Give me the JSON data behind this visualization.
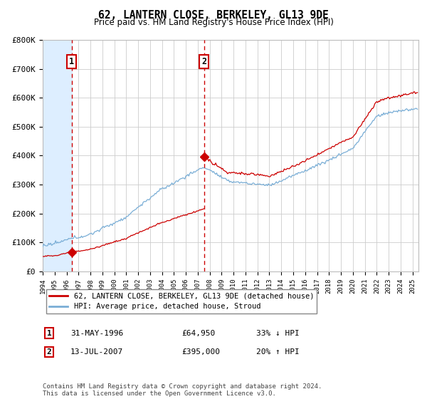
{
  "title": "62, LANTERN CLOSE, BERKELEY, GL13 9DE",
  "subtitle": "Price paid vs. HM Land Registry's House Price Index (HPI)",
  "hpi_color": "#7aaed6",
  "price_color": "#cc0000",
  "annotation_color": "#cc0000",
  "background_color": "#ffffff",
  "grid_color": "#cccccc",
  "shade_color": "#ddeeff",
  "ylim": [
    0,
    800000
  ],
  "yticks": [
    0,
    100000,
    200000,
    300000,
    400000,
    500000,
    600000,
    700000,
    800000
  ],
  "ytick_labels": [
    "£0",
    "£100K",
    "£200K",
    "£300K",
    "£400K",
    "£500K",
    "£600K",
    "£700K",
    "£800K"
  ],
  "purchase1": {
    "date": "1996-05-31",
    "price": 64950,
    "label": "1",
    "x": 1996.42
  },
  "purchase2": {
    "date": "2007-07-13",
    "price": 395000,
    "label": "2",
    "x": 2007.54
  },
  "legend_line1": "62, LANTERN CLOSE, BERKELEY, GL13 9DE (detached house)",
  "legend_line2": "HPI: Average price, detached house, Stroud",
  "table_row1": [
    "1",
    "31-MAY-1996",
    "£64,950",
    "33% ↓ HPI"
  ],
  "table_row2": [
    "2",
    "13-JUL-2007",
    "£395,000",
    "20% ↑ HPI"
  ],
  "footer": "Contains HM Land Registry data © Crown copyright and database right 2024.\nThis data is licensed under the Open Government Licence v3.0.",
  "xmin": 1994,
  "xmax": 2025.5,
  "shade_xmax": 1996.5
}
